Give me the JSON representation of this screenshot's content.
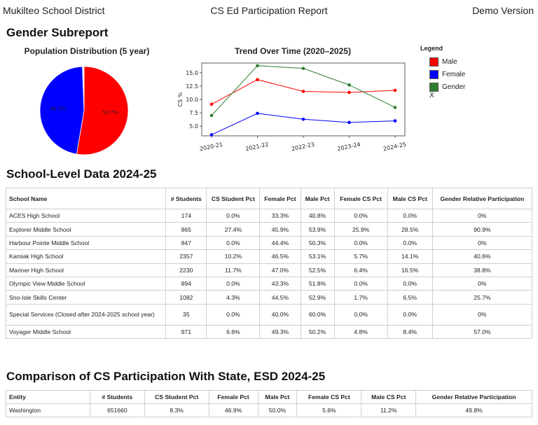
{
  "header": {
    "district": "Mukilteo School District",
    "report_title": "CS Ed Participation Report",
    "version": "Demo Version"
  },
  "gender_section": {
    "title": "Gender Subreport"
  },
  "colors": {
    "male": "#ff0000",
    "female": "#0000ff",
    "gender": "#2e7d2e"
  },
  "chart_data": [
    {
      "type": "pie",
      "title": "Population Distribution (5 year)",
      "slices": [
        {
          "name": "Male",
          "value": 52.7,
          "label": "52.7%"
        },
        {
          "name": "Female",
          "value": 46.7,
          "label": "46.7%"
        },
        {
          "name": "",
          "value": 0.6,
          "label": ""
        }
      ]
    },
    {
      "type": "line",
      "title": "Trend Over Time (2020–2025)",
      "ylabel": "CS %",
      "xlabel": "",
      "categories": [
        "2020-21",
        "2021-22",
        "2022-23",
        "2023-24",
        "2024-25"
      ],
      "yticks": [
        "5.0",
        "7.5",
        "10.0",
        "12.5",
        "15.0"
      ],
      "ylim": [
        3.2,
        16.8
      ],
      "series": [
        {
          "name": "Male",
          "color": "#ff0000",
          "values": [
            9.1,
            13.7,
            11.5,
            11.3,
            11.7
          ]
        },
        {
          "name": "Female",
          "color": "#0000ff",
          "values": [
            3.4,
            7.4,
            6.3,
            5.7,
            6.0
          ]
        },
        {
          "name": "Gender",
          "color": "#2e7d2e",
          "values": [
            7.0,
            16.3,
            15.8,
            12.7,
            8.5
          ]
        }
      ],
      "legend": {
        "title": "Legend",
        "entries": [
          "Male",
          "Female",
          "Gender"
        ],
        "extra": "X",
        "placement": "right"
      }
    }
  ],
  "school_section": {
    "title": "School-Level Data 2024-25",
    "columns": [
      "School Name",
      "# Students",
      "CS Student Pct",
      "Female Pct",
      "Male Pct",
      "Female CS Pct",
      "Male CS Pct",
      "Gender Relative Participation"
    ],
    "rows": [
      [
        "ACES High School",
        "174",
        "0.0%",
        "33.3%",
        "40.8%",
        "0.0%",
        "0.0%",
        "0%"
      ],
      [
        "Explorer Middle School",
        "865",
        "27.4%",
        "45.9%",
        "53.9%",
        "25.9%",
        "28.5%",
        "90.9%"
      ],
      [
        "Harbour Pointe Middle School",
        "847",
        "0.0%",
        "44.4%",
        "50.3%",
        "0.0%",
        "0.0%",
        "0%"
      ],
      [
        "Kamiak High School",
        "2357",
        "10.2%",
        "46.5%",
        "53.1%",
        "5.7%",
        "14.1%",
        "40.6%"
      ],
      [
        "Mariner High School",
        "2230",
        "11.7%",
        "47.0%",
        "52.5%",
        "6.4%",
        "16.5%",
        "38.8%"
      ],
      [
        "Olympic View Middle School",
        "894",
        "0.0%",
        "43.3%",
        "51.8%",
        "0.0%",
        "0.0%",
        "0%"
      ],
      [
        "Sno-Isle Skills Center",
        "1082",
        "4.3%",
        "44.5%",
        "52.9%",
        "1.7%",
        "6.5%",
        "25.7%"
      ],
      [
        "Special Services (Closed after 2024-2025 school year)",
        "35",
        "0.0%",
        "40.0%",
        "60.0%",
        "0.0%",
        "0.0%",
        "0%"
      ],
      [
        "Voyager Middle School",
        "971",
        "6.6%",
        "49.3%",
        "50.2%",
        "4.8%",
        "8.4%",
        "57.0%"
      ]
    ]
  },
  "state_section": {
    "title": "Comparison of CS Participation With State, ESD 2024-25",
    "columns": [
      "Entity",
      "# Students",
      "CS Student Pct",
      "Female Pct",
      "Male Pct",
      "Female CS Pct",
      "Male CS Pct",
      "Gender Relative Participation"
    ],
    "rows": [
      [
        "Washington",
        "651660",
        "8.3%",
        "46.9%",
        "50.0%",
        "5.6%",
        "11.2%",
        "49.8%"
      ]
    ]
  }
}
